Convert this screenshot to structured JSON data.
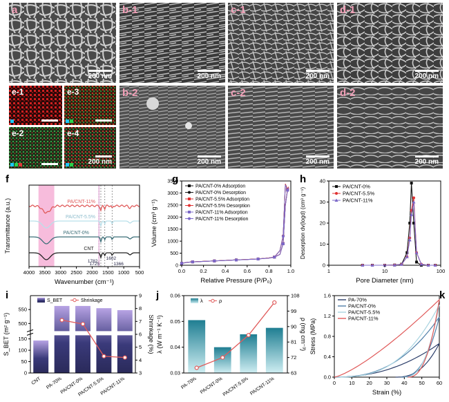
{
  "sem_panels": {
    "a": {
      "label": "a",
      "scale": "200 nm"
    },
    "b1": {
      "label": "b-1",
      "scale": "200 nm"
    },
    "c1": {
      "label": "c-1",
      "scale": "200 nm"
    },
    "d1": {
      "label": "d-1",
      "scale": "200 nm"
    },
    "e1": {
      "label": "e-1",
      "scale": ""
    },
    "e3": {
      "label": "e-3",
      "scale": ""
    },
    "e2": {
      "label": "e-2",
      "scale": ""
    },
    "e4": {
      "label": "e-4",
      "scale": "200 nm"
    },
    "b2": {
      "label": "b-2",
      "scale": "200 nm"
    },
    "c2": {
      "label": "c-2",
      "scale": "200 nm"
    },
    "d2": {
      "label": "d-2",
      "scale": "200 nm"
    }
  },
  "chart_data": [
    {
      "id": "f",
      "type": "line",
      "letter": "f",
      "xlabel": "Wavenumber (cm⁻¹)",
      "ylabel": "Transmittance (a.u.)",
      "xlim": [
        4000,
        500
      ],
      "xticks": [
        4000,
        3500,
        3000,
        2500,
        2000,
        1500,
        1000,
        500
      ],
      "series": [
        {
          "name": "PA/CNT-11%",
          "color": "#e05a5a"
        },
        {
          "name": "PA/CNT-5.5%",
          "color": "#b9e0ea"
        },
        {
          "name": "PA/CNT-0%",
          "color": "#3b6e78"
        },
        {
          "name": "CNT",
          "color": "#222222"
        }
      ],
      "annotations": [
        "1782",
        "1725",
        "1602",
        "1366"
      ],
      "highlight_color": "#f4a6d0"
    },
    {
      "id": "g",
      "type": "line",
      "letter": "g",
      "xlabel": "Relative Pressure (P/P₀)",
      "ylabel": "Volume (cm³ g⁻¹)",
      "xlim": [
        0.0,
        1.0
      ],
      "ylim": [
        0,
        3500
      ],
      "xticks": [
        0.0,
        0.2,
        0.4,
        0.6,
        0.8,
        1.0
      ],
      "yticks": [
        0,
        500,
        1000,
        1500,
        2000,
        2500,
        3000,
        3500
      ],
      "legend": "top-left",
      "series": [
        {
          "name": "PA/CNT-0% Adsorption",
          "color": "#111111",
          "marker": "square"
        },
        {
          "name": "PA/CNT-0% Desorption",
          "color": "#111111",
          "marker": "circle"
        },
        {
          "name": "PA/CNT-5.5% Adsorption",
          "color": "#e03030",
          "marker": "square"
        },
        {
          "name": "PA/CNT-5.5% Desorption",
          "color": "#e03030",
          "marker": "circle"
        },
        {
          "name": "PA/CNT-11% Adsorption",
          "color": "#7b68c8",
          "marker": "square"
        },
        {
          "name": "PA/CNT-11% Desorption",
          "color": "#7b68c8",
          "marker": "circle"
        }
      ],
      "x": [
        0.0,
        0.05,
        0.1,
        0.2,
        0.3,
        0.4,
        0.5,
        0.6,
        0.7,
        0.8,
        0.85,
        0.9,
        0.93,
        0.95,
        0.97,
        0.98
      ],
      "values": [
        80,
        120,
        140,
        160,
        180,
        200,
        220,
        240,
        260,
        300,
        340,
        450,
        900,
        2500,
        3150,
        3250
      ]
    },
    {
      "id": "h",
      "type": "line",
      "letter": "h",
      "xlabel": "Pore Diameter (nm)",
      "ylabel": "Desorption dv(logd) (cm³ g⁻¹)",
      "xlim": [
        1,
        100
      ],
      "xscale": "log",
      "ylim": [
        0,
        40
      ],
      "xticks": [
        1,
        10,
        100
      ],
      "yticks": [
        0,
        10,
        20,
        30,
        40
      ],
      "legend": "top-left",
      "x": [
        4,
        6,
        10,
        15,
        20,
        25,
        28,
        30,
        33,
        37,
        45,
        60,
        80
      ],
      "series": [
        {
          "name": "PA/CNT-0%",
          "color": "#111111",
          "marker": "square",
          "values": [
            0,
            0,
            0,
            0.1,
            0.5,
            6,
            20,
            39,
            20,
            1.5,
            0,
            0,
            0
          ]
        },
        {
          "name": "PA/CNT-5.5%",
          "color": "#e03030",
          "marker": "circle",
          "values": [
            0,
            0,
            0,
            0.1,
            0.4,
            4,
            13,
            26,
            32,
            6,
            0.5,
            0,
            0
          ]
        },
        {
          "name": "PA/CNT-11%",
          "color": "#7b68c8",
          "marker": "triangle",
          "values": [
            0,
            0,
            0,
            0.1,
            0.4,
            4,
            12,
            24,
            30,
            6,
            0.5,
            0,
            0
          ]
        }
      ]
    },
    {
      "id": "i",
      "type": "bar",
      "letter": "i",
      "categories": [
        "CNT",
        "PA-70%",
        "PA/CNT-0%",
        "PA/CNT-5.5%",
        "PA/CNT-11%"
      ],
      "ylabel": "S_BET (m² g⁻¹)",
      "y2label": "Shrinkage (%)",
      "ylim": [
        0,
        600
      ],
      "y2lim": [
        3,
        9
      ],
      "yticks": [
        0,
        50,
        100,
        150,
        500,
        550
      ],
      "y2ticks": [
        3,
        4,
        5,
        6,
        7,
        8,
        9
      ],
      "axis_break": [
        175,
        475
      ],
      "series": [
        {
          "name": "S_BET",
          "values": [
            143,
            563,
            563,
            555,
            548
          ],
          "color": "#8a6fc4"
        },
        {
          "name": "Shrinkage",
          "values": [
            null,
            7.1,
            6.8,
            4.3,
            4.2
          ],
          "color": "#e05a5a"
        }
      ]
    },
    {
      "id": "j",
      "type": "bar",
      "letter": "j",
      "categories": [
        "PA-70%",
        "PA/CNT-0%",
        "PA/CNT-5.5%",
        "PA/CNT-11%"
      ],
      "ylabel": "λ (W m⁻¹ K⁻¹)",
      "y2label": "ρ (mg cm⁻³)",
      "ylim": [
        0.03,
        0.06
      ],
      "y2lim": [
        63,
        108
      ],
      "yticks": [
        0.03,
        0.04,
        0.05,
        0.06
      ],
      "y2ticks": [
        63,
        72,
        81,
        90,
        99,
        108
      ],
      "series": [
        {
          "name": "λ",
          "values": [
            0.0505,
            0.04,
            0.045,
            0.0475
          ],
          "color": "#3a8fa0"
        },
        {
          "name": "ρ",
          "values": [
            66,
            72,
            85,
            104
          ],
          "color": "#e05a5a"
        }
      ]
    },
    {
      "id": "k",
      "type": "line",
      "letter": "k",
      "xlabel": "Strain (%)",
      "ylabel": "Stress (MPa)",
      "xlim": [
        0,
        60
      ],
      "ylim": [
        0,
        1.6
      ],
      "xticks": [
        0,
        10,
        20,
        30,
        40,
        50,
        60
      ],
      "yticks": [
        0.0,
        0.4,
        0.8,
        1.2,
        1.6
      ],
      "legend": "top-left",
      "series": [
        {
          "name": "PA-70%",
          "color": "#2c3e6a",
          "peak": 0.66
        },
        {
          "name": "PA/CNT-0%",
          "color": "#4f7ea8",
          "peak": 1.18
        },
        {
          "name": "PA/CNT-5.5%",
          "color": "#a9d4e0",
          "peak": 1.42
        },
        {
          "name": "PA/CNT-11%",
          "color": "#e05a5a",
          "peak": 1.52
        }
      ]
    }
  ]
}
